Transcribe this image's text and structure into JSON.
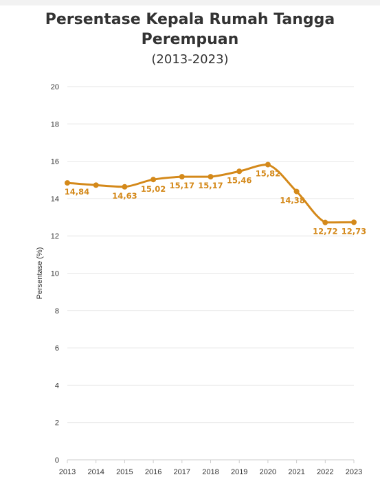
{
  "colors": {
    "series": "#d4891a",
    "grid": "#e6e6e6",
    "text": "#333333"
  },
  "chart_data": {
    "type": "line",
    "title_line1": "Persentase Kepala Rumah Tangga",
    "title_line2": "Perempuan",
    "subtitle": "(2013-2023)",
    "xlabel": "",
    "ylabel": "Persentase (%)",
    "x": [
      "2013",
      "2014",
      "2015",
      "2016",
      "2017",
      "2018",
      "2019",
      "2020",
      "2021",
      "2022",
      "2023"
    ],
    "values": [
      14.84,
      14.72,
      14.63,
      15.02,
      15.17,
      15.17,
      15.46,
      15.82,
      14.38,
      12.72,
      12.73
    ],
    "data_labels": [
      "14,84",
      "",
      "14,63",
      "15,02",
      "15,17",
      "15,17",
      "15,46",
      "15,82",
      "14,38",
      "12,72",
      "12,73"
    ],
    "ylim": [
      0,
      20
    ],
    "yticks": [
      0,
      2,
      4,
      6,
      8,
      10,
      12,
      14,
      16,
      18,
      20
    ],
    "grid": true,
    "legend": "none"
  }
}
